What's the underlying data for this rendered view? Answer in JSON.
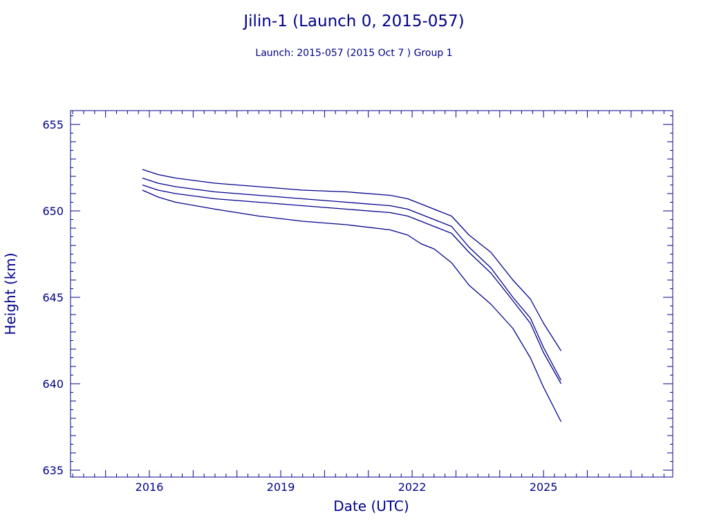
{
  "chart_data": {
    "type": "line",
    "title": "Jilin-1 (Launch 0, 2015-057)",
    "subtitle": "Launch: 2015-057  (2015 Oct  7 )  Group 1",
    "xlabel": "Date (UTC)",
    "ylabel": "Height (km)",
    "xlim": [
      2014.2,
      2027.95
    ],
    "ylim": [
      634.6,
      655.8
    ],
    "x_ticks": [
      2016,
      2019,
      2022,
      2025
    ],
    "y_ticks": [
      635,
      640,
      645,
      650,
      655
    ],
    "grid": false,
    "legend": "none",
    "colors": {
      "line": "#00008b",
      "axis": "#00008b",
      "text": "#00008b"
    },
    "series": [
      {
        "x": [
          2015.84,
          2016.2,
          2016.6,
          2017.5,
          2018.5,
          2019.5,
          2020.5,
          2021.5,
          2021.9,
          2022.2,
          2022.5,
          2022.9,
          2023.3,
          2023.8,
          2024.3,
          2024.7,
          2025.0,
          2025.4
        ],
        "y": [
          652.4,
          652.1,
          651.9,
          651.6,
          651.4,
          651.2,
          651.1,
          650.9,
          650.7,
          650.4,
          650.1,
          649.7,
          648.6,
          647.6,
          646.0,
          644.9,
          643.5,
          641.9
        ]
      },
      {
        "x": [
          2015.84,
          2016.2,
          2016.6,
          2017.5,
          2018.5,
          2019.5,
          2020.5,
          2021.5,
          2021.9,
          2022.2,
          2022.5,
          2022.9,
          2023.3,
          2023.8,
          2024.3,
          2024.7,
          2025.0,
          2025.4
        ],
        "y": [
          651.9,
          651.6,
          651.4,
          651.1,
          650.9,
          650.7,
          650.5,
          650.3,
          650.1,
          649.8,
          649.5,
          649.1,
          647.9,
          646.7,
          645.0,
          643.8,
          642.1,
          640.2
        ]
      },
      {
        "x": [
          2015.84,
          2016.2,
          2016.6,
          2017.5,
          2018.5,
          2019.5,
          2020.5,
          2021.5,
          2021.9,
          2022.2,
          2022.5,
          2022.9,
          2023.3,
          2023.8,
          2024.3,
          2024.7,
          2025.0,
          2025.4
        ],
        "y": [
          651.5,
          651.2,
          651.0,
          650.7,
          650.5,
          650.3,
          650.1,
          649.9,
          649.7,
          649.4,
          649.1,
          648.7,
          647.6,
          646.4,
          644.8,
          643.5,
          641.8,
          640.0
        ]
      },
      {
        "x": [
          2015.84,
          2016.2,
          2016.6,
          2017.5,
          2018.5,
          2019.5,
          2020.5,
          2021.5,
          2021.9,
          2022.2,
          2022.5,
          2022.9,
          2023.3,
          2023.8,
          2024.3,
          2024.7,
          2025.0,
          2025.4
        ],
        "y": [
          651.2,
          650.8,
          650.5,
          650.1,
          649.7,
          649.4,
          649.2,
          648.9,
          648.6,
          648.1,
          647.8,
          647.0,
          645.7,
          644.6,
          643.2,
          641.5,
          639.8,
          637.8
        ]
      }
    ]
  }
}
